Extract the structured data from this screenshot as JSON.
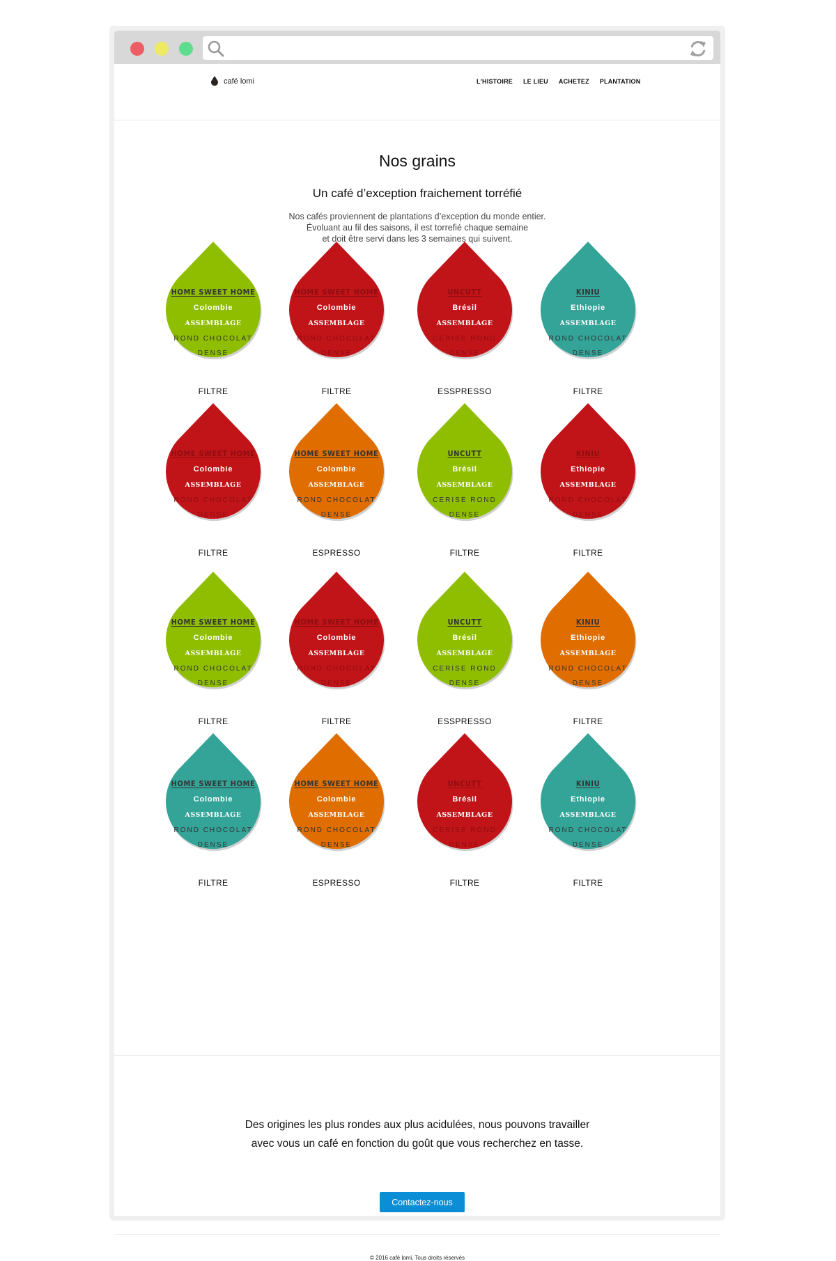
{
  "browser": {
    "window_buttons": [
      "close",
      "minimize",
      "maximize"
    ],
    "icons": {
      "search": "search-icon",
      "reload": "reload-icon"
    }
  },
  "header": {
    "logo_text": "café lomi",
    "logo_icon": "coffee-drop-icon",
    "nav": [
      "L'HISTOIRE",
      "LE LIEU",
      "ACHETEZ",
      "PLANTATION"
    ]
  },
  "main": {
    "title": "Nos grains",
    "subtitle": "Un café d’exception fraichement torréfié",
    "intro_lines": [
      "Nos cafés proviennent de plantations d’exception du monde entier.",
      "Évoluant au fil des saisons, il est torrefié chaque semaine",
      "et doit être servi dans les 3 semaines qui suivent."
    ]
  },
  "colors": {
    "green": "#8fbe00",
    "red": "#c11419",
    "teal": "#34a398",
    "orange": "#df6d00",
    "button": "#0b8ed6"
  },
  "coffees": [
    {
      "name": "HOME SWEET HOME",
      "origin": "Colombie",
      "blend": "ASSEMBLAGE",
      "notes": "ROND CHOCOLAT",
      "body": "DENSE",
      "method": "FILTRE",
      "color": "green"
    },
    {
      "name": "HOME SWEET HOME",
      "origin": "Colombie",
      "blend": "ASSEMBLAGE",
      "notes": "ROND CHOCOLAT",
      "body": "DENSE",
      "method": "FILTRE",
      "color": "red"
    },
    {
      "name": "UNCUTT",
      "origin": "Brésil",
      "blend": "ASSEMBLAGE",
      "notes": "CERISE ROND",
      "body": "DENSE",
      "method": "ESSPRESSO",
      "color": "red"
    },
    {
      "name": "KINIU",
      "origin": "Ethiopie",
      "blend": "ASSEMBLAGE",
      "notes": "ROND CHOCOLAT",
      "body": "DENSE",
      "method": "FILTRE",
      "color": "teal"
    },
    {
      "name": "HOME SWEET HOME",
      "origin": "Colombie",
      "blend": "ASSEMBLAGE",
      "notes": "ROND CHOCOLAT",
      "body": "DENSE",
      "method": "FILTRE",
      "color": "red"
    },
    {
      "name": "HOME SWEET HOME",
      "origin": "Colombie",
      "blend": "ASSEMBLAGE",
      "notes": "ROND CHOCOLAT",
      "body": "DENSE",
      "method": "ESPRESSO",
      "color": "orange"
    },
    {
      "name": "UNCUTT",
      "origin": "Brésil",
      "blend": "ASSEMBLAGE",
      "notes": "CERISE ROND",
      "body": "DENSE",
      "method": "FILTRE",
      "color": "green"
    },
    {
      "name": "KINIU",
      "origin": "Ethiopie",
      "blend": "ASSEMBLAGE",
      "notes": "ROND CHOCOLAT",
      "body": "DENSE",
      "method": "FILTRE",
      "color": "red"
    },
    {
      "name": "HOME SWEET HOME",
      "origin": "Colombie",
      "blend": "ASSEMBLAGE",
      "notes": "ROND CHOCOLAT",
      "body": "DENSE",
      "method": "FILTRE",
      "color": "green"
    },
    {
      "name": "HOME SWEET HOME",
      "origin": "Colombie",
      "blend": "ASSEMBLAGE",
      "notes": "ROND CHOCOLAT",
      "body": "DENSE",
      "method": "FILTRE",
      "color": "red"
    },
    {
      "name": "UNCUTT",
      "origin": "Brésil",
      "blend": "ASSEMBLAGE",
      "notes": "CERISE ROND",
      "body": "DENSE",
      "method": "ESSPRESSO",
      "color": "green"
    },
    {
      "name": "KINIU",
      "origin": "Ethiopie",
      "blend": "ASSEMBLAGE",
      "notes": "ROND CHOCOLAT",
      "body": "DENSE",
      "method": "FILTRE",
      "color": "orange"
    },
    {
      "name": "HOME SWEET HOME",
      "origin": "Colombie",
      "blend": "ASSEMBLAGE",
      "notes": "ROND CHOCOLAT",
      "body": "DENSE",
      "method": "FILTRE",
      "color": "teal"
    },
    {
      "name": "HOME SWEET HOME",
      "origin": "Colombie",
      "blend": "ASSEMBLAGE",
      "notes": "ROND CHOCOLAT",
      "body": "DENSE",
      "method": "ESPRESSO",
      "color": "orange"
    },
    {
      "name": "UNCUTT",
      "origin": "Brésil",
      "blend": "ASSEMBLAGE",
      "notes": "CERISE ROND",
      "body": "DENSE",
      "method": "FILTRE",
      "color": "red"
    },
    {
      "name": "KINIU",
      "origin": "Ethiopie",
      "blend": "ASSEMBLAGE",
      "notes": "ROND CHOCOLAT",
      "body": "DENSE",
      "method": "FILTRE",
      "color": "teal"
    }
  ],
  "cta": {
    "lines": [
      "Des origines les plus rondes aux plus acidulées, nous pouvons travailler",
      "avec vous un café en fonction du goût que vous recherchez en tasse."
    ],
    "button_label": "Contactez-nous"
  },
  "footer": {
    "copyright": "© 2016 café lomi, Tous droits réservés"
  }
}
